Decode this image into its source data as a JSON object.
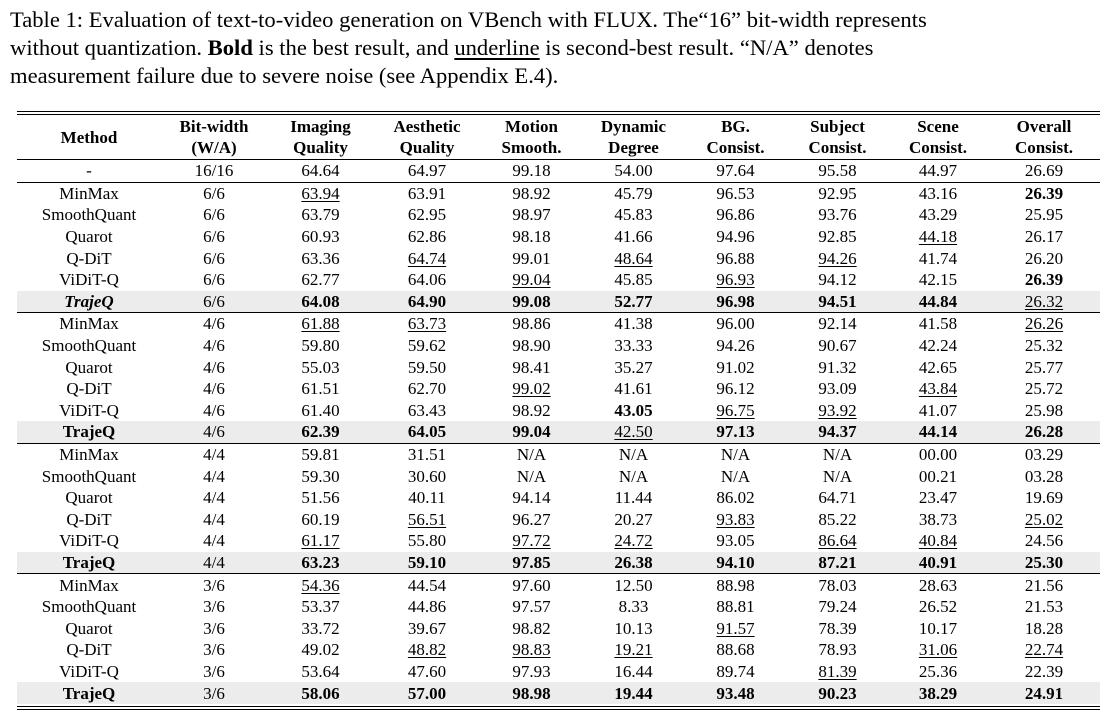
{
  "caption": {
    "part1": "Table 1: Evaluation of text-to-video generation on VBench with FLUX. The“16” bit-width represents\nwithout quantization. ",
    "bold_word": "Bold",
    "part2": " is the best result, and ",
    "underline_word": "underline",
    "part3": " is second-best result. “N/A” denotes\nmeasurement failure due to severe noise (see Appendix E.4)."
  },
  "table": {
    "headers": [
      [
        "Method"
      ],
      [
        "Bit-width",
        "(W/A)"
      ],
      [
        "Imaging",
        "Quality"
      ],
      [
        "Aesthetic",
        "Quality"
      ],
      [
        "Motion",
        "Smooth."
      ],
      [
        "Dynamic",
        "Degree"
      ],
      [
        "BG.",
        "Consist."
      ],
      [
        "Subject",
        "Consist."
      ],
      [
        "Scene",
        "Consist."
      ],
      [
        "Overall",
        "Consist."
      ]
    ],
    "rows": [
      {
        "group_start": false,
        "ours": false,
        "method": "-",
        "bit": "16/16",
        "cells": [
          [
            "64.64",
            ""
          ],
          [
            "64.97",
            ""
          ],
          [
            "99.18",
            ""
          ],
          [
            "54.00",
            ""
          ],
          [
            "97.64",
            ""
          ],
          [
            "95.58",
            ""
          ],
          [
            "44.97",
            ""
          ],
          [
            "26.69",
            ""
          ]
        ]
      },
      {
        "group_start": true,
        "ours": false,
        "method": "MinMax",
        "bit": "6/6",
        "cells": [
          [
            "63.94",
            "u"
          ],
          [
            "63.91",
            ""
          ],
          [
            "98.92",
            ""
          ],
          [
            "45.79",
            ""
          ],
          [
            "96.53",
            ""
          ],
          [
            "92.95",
            ""
          ],
          [
            "43.16",
            ""
          ],
          [
            "26.39",
            "b"
          ]
        ]
      },
      {
        "group_start": false,
        "ours": false,
        "method": "SmoothQuant",
        "bit": "6/6",
        "cells": [
          [
            "63.79",
            ""
          ],
          [
            "62.95",
            ""
          ],
          [
            "98.97",
            ""
          ],
          [
            "45.83",
            ""
          ],
          [
            "96.86",
            ""
          ],
          [
            "93.76",
            ""
          ],
          [
            "43.29",
            ""
          ],
          [
            "25.95",
            ""
          ]
        ]
      },
      {
        "group_start": false,
        "ours": false,
        "method": "Quarot",
        "bit": "6/6",
        "cells": [
          [
            "60.93",
            ""
          ],
          [
            "62.86",
            ""
          ],
          [
            "98.18",
            ""
          ],
          [
            "41.66",
            ""
          ],
          [
            "94.96",
            ""
          ],
          [
            "92.85",
            ""
          ],
          [
            "44.18",
            "u"
          ],
          [
            "26.17",
            ""
          ]
        ]
      },
      {
        "group_start": false,
        "ours": false,
        "method": "Q-DiT",
        "bit": "6/6",
        "cells": [
          [
            "63.36",
            ""
          ],
          [
            "64.74",
            "u"
          ],
          [
            "99.01",
            ""
          ],
          [
            "48.64",
            "u"
          ],
          [
            "96.88",
            ""
          ],
          [
            "94.26",
            "u"
          ],
          [
            "41.74",
            ""
          ],
          [
            "26.20",
            ""
          ]
        ]
      },
      {
        "group_start": false,
        "ours": false,
        "method": "ViDiT-Q",
        "bit": "6/6",
        "cells": [
          [
            "62.77",
            ""
          ],
          [
            "64.06",
            ""
          ],
          [
            "99.04",
            "u"
          ],
          [
            "45.85",
            ""
          ],
          [
            "96.93",
            "u"
          ],
          [
            "94.12",
            ""
          ],
          [
            "42.15",
            ""
          ],
          [
            "26.39",
            "b"
          ]
        ]
      },
      {
        "group_start": false,
        "ours": true,
        "italic": true,
        "method": "TrajeQ",
        "bit": "6/6",
        "cells": [
          [
            "64.08",
            "b"
          ],
          [
            "64.90",
            "b"
          ],
          [
            "99.08",
            "b"
          ],
          [
            "52.77",
            "b"
          ],
          [
            "96.98",
            "b"
          ],
          [
            "94.51",
            "b"
          ],
          [
            "44.84",
            "b"
          ],
          [
            "26.32",
            "u"
          ]
        ]
      },
      {
        "group_start": true,
        "ours": false,
        "method": "MinMax",
        "bit": "4/6",
        "cells": [
          [
            "61.88",
            "u"
          ],
          [
            "63.73",
            "u"
          ],
          [
            "98.86",
            ""
          ],
          [
            "41.38",
            ""
          ],
          [
            "96.00",
            ""
          ],
          [
            "92.14",
            ""
          ],
          [
            "41.58",
            ""
          ],
          [
            "26.26",
            "u"
          ]
        ]
      },
      {
        "group_start": false,
        "ours": false,
        "method": "SmoothQuant",
        "bit": "4/6",
        "cells": [
          [
            "59.80",
            ""
          ],
          [
            "59.62",
            ""
          ],
          [
            "98.90",
            ""
          ],
          [
            "33.33",
            ""
          ],
          [
            "94.26",
            ""
          ],
          [
            "90.67",
            ""
          ],
          [
            "42.24",
            ""
          ],
          [
            "25.32",
            ""
          ]
        ]
      },
      {
        "group_start": false,
        "ours": false,
        "method": "Quarot",
        "bit": "4/6",
        "cells": [
          [
            "55.03",
            ""
          ],
          [
            "59.50",
            ""
          ],
          [
            "98.41",
            ""
          ],
          [
            "35.27",
            ""
          ],
          [
            "91.02",
            ""
          ],
          [
            "91.32",
            ""
          ],
          [
            "42.65",
            ""
          ],
          [
            "25.77",
            ""
          ]
        ]
      },
      {
        "group_start": false,
        "ours": false,
        "method": "Q-DiT",
        "bit": "4/6",
        "cells": [
          [
            "61.51",
            ""
          ],
          [
            "62.70",
            ""
          ],
          [
            "99.02",
            "u"
          ],
          [
            "41.61",
            ""
          ],
          [
            "96.12",
            ""
          ],
          [
            "93.09",
            ""
          ],
          [
            "43.84",
            "u"
          ],
          [
            "25.72",
            ""
          ]
        ]
      },
      {
        "group_start": false,
        "ours": false,
        "method": "ViDiT-Q",
        "bit": "4/6",
        "cells": [
          [
            "61.40",
            ""
          ],
          [
            "63.43",
            ""
          ],
          [
            "98.92",
            ""
          ],
          [
            "43.05",
            "b"
          ],
          [
            "96.75",
            "u"
          ],
          [
            "93.92",
            "u"
          ],
          [
            "41.07",
            ""
          ],
          [
            "25.98",
            ""
          ]
        ]
      },
      {
        "group_start": false,
        "ours": true,
        "method": "TrajeQ",
        "bit": "4/6",
        "cells": [
          [
            "62.39",
            "b"
          ],
          [
            "64.05",
            "b"
          ],
          [
            "99.04",
            "b"
          ],
          [
            "42.50",
            "u"
          ],
          [
            "97.13",
            "b"
          ],
          [
            "94.37",
            "b"
          ],
          [
            "44.14",
            "b"
          ],
          [
            "26.28",
            "b"
          ]
        ]
      },
      {
        "group_start": true,
        "ours": false,
        "method": "MinMax",
        "bit": "4/4",
        "cells": [
          [
            "59.81",
            ""
          ],
          [
            "31.51",
            ""
          ],
          [
            "N/A",
            ""
          ],
          [
            "N/A",
            ""
          ],
          [
            "N/A",
            ""
          ],
          [
            "N/A",
            ""
          ],
          [
            "00.00",
            ""
          ],
          [
            "03.29",
            ""
          ]
        ]
      },
      {
        "group_start": false,
        "ours": false,
        "method": "SmoothQuant",
        "bit": "4/4",
        "cells": [
          [
            "59.30",
            ""
          ],
          [
            "30.60",
            ""
          ],
          [
            "N/A",
            ""
          ],
          [
            "N/A",
            ""
          ],
          [
            "N/A",
            ""
          ],
          [
            "N/A",
            ""
          ],
          [
            "00.21",
            ""
          ],
          [
            "03.28",
            ""
          ]
        ]
      },
      {
        "group_start": false,
        "ours": false,
        "method": "Quarot",
        "bit": "4/4",
        "cells": [
          [
            "51.56",
            ""
          ],
          [
            "40.11",
            ""
          ],
          [
            "94.14",
            ""
          ],
          [
            "11.44",
            ""
          ],
          [
            "86.02",
            ""
          ],
          [
            "64.71",
            ""
          ],
          [
            "23.47",
            ""
          ],
          [
            "19.69",
            ""
          ]
        ]
      },
      {
        "group_start": false,
        "ours": false,
        "method": "Q-DiT",
        "bit": "4/4",
        "cells": [
          [
            "60.19",
            ""
          ],
          [
            "56.51",
            "u"
          ],
          [
            "96.27",
            ""
          ],
          [
            "20.27",
            ""
          ],
          [
            "93.83",
            "u"
          ],
          [
            "85.22",
            ""
          ],
          [
            "38.73",
            ""
          ],
          [
            "25.02",
            "u"
          ]
        ]
      },
      {
        "group_start": false,
        "ours": false,
        "method": "ViDiT-Q",
        "bit": "4/4",
        "cells": [
          [
            "61.17",
            "u"
          ],
          [
            "55.80",
            ""
          ],
          [
            "97.72",
            "u"
          ],
          [
            "24.72",
            "u"
          ],
          [
            "93.05",
            ""
          ],
          [
            "86.64",
            "u"
          ],
          [
            "40.84",
            "u"
          ],
          [
            "24.56",
            ""
          ]
        ]
      },
      {
        "group_start": false,
        "ours": true,
        "method": "TrajeQ",
        "bit": "4/4",
        "cells": [
          [
            "63.23",
            "b"
          ],
          [
            "59.10",
            "b"
          ],
          [
            "97.85",
            "b"
          ],
          [
            "26.38",
            "b"
          ],
          [
            "94.10",
            "b"
          ],
          [
            "87.21",
            "b"
          ],
          [
            "40.91",
            "b"
          ],
          [
            "25.30",
            "b"
          ]
        ]
      },
      {
        "group_start": true,
        "ours": false,
        "method": "MinMax",
        "bit": "3/6",
        "cells": [
          [
            "54.36",
            "u"
          ],
          [
            "44.54",
            ""
          ],
          [
            "97.60",
            ""
          ],
          [
            "12.50",
            ""
          ],
          [
            "88.98",
            ""
          ],
          [
            "78.03",
            ""
          ],
          [
            "28.63",
            ""
          ],
          [
            "21.56",
            ""
          ]
        ]
      },
      {
        "group_start": false,
        "ours": false,
        "method": "SmoothQuant",
        "bit": "3/6",
        "cells": [
          [
            "53.37",
            ""
          ],
          [
            "44.86",
            ""
          ],
          [
            "97.57",
            ""
          ],
          [
            "8.33",
            ""
          ],
          [
            "88.81",
            ""
          ],
          [
            "79.24",
            ""
          ],
          [
            "26.52",
            ""
          ],
          [
            "21.53",
            ""
          ]
        ]
      },
      {
        "group_start": false,
        "ours": false,
        "method": "Quarot",
        "bit": "3/6",
        "cells": [
          [
            "33.72",
            ""
          ],
          [
            "39.67",
            ""
          ],
          [
            "98.82",
            ""
          ],
          [
            "10.13",
            ""
          ],
          [
            "91.57",
            "u"
          ],
          [
            "78.39",
            ""
          ],
          [
            "10.17",
            ""
          ],
          [
            "18.28",
            ""
          ]
        ]
      },
      {
        "group_start": false,
        "ours": false,
        "method": "Q-DiT",
        "bit": "3/6",
        "cells": [
          [
            "49.02",
            ""
          ],
          [
            "48.82",
            "u"
          ],
          [
            "98.83",
            "u"
          ],
          [
            "19.21",
            "u"
          ],
          [
            "88.68",
            ""
          ],
          [
            "78.93",
            ""
          ],
          [
            "31.06",
            "u"
          ],
          [
            "22.74",
            "u"
          ]
        ]
      },
      {
        "group_start": false,
        "ours": false,
        "method": "ViDiT-Q",
        "bit": "3/6",
        "cells": [
          [
            "53.64",
            ""
          ],
          [
            "47.60",
            ""
          ],
          [
            "97.93",
            ""
          ],
          [
            "16.44",
            ""
          ],
          [
            "89.74",
            ""
          ],
          [
            "81.39",
            "u"
          ],
          [
            "25.36",
            ""
          ],
          [
            "22.39",
            ""
          ]
        ]
      },
      {
        "group_start": false,
        "ours": true,
        "method": "TrajeQ",
        "bit": "3/6",
        "cells": [
          [
            "58.06",
            "b"
          ],
          [
            "57.00",
            "b"
          ],
          [
            "98.98",
            "b"
          ],
          [
            "19.44",
            "b"
          ],
          [
            "93.48",
            "b"
          ],
          [
            "90.23",
            "b"
          ],
          [
            "38.29",
            "b"
          ],
          [
            "24.91",
            "b"
          ]
        ]
      }
    ]
  }
}
